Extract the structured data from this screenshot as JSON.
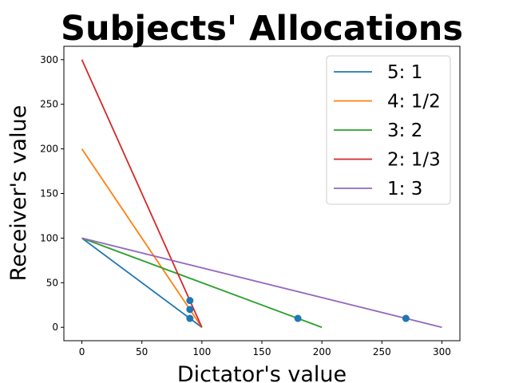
{
  "chart_data": {
    "type": "line",
    "title": "Subjects' Allocations",
    "xlabel": "Dictator's value",
    "ylabel": "Receiver's value",
    "xlim": [
      -15,
      315
    ],
    "ylim": [
      -15,
      315
    ],
    "xticks": [
      0,
      50,
      100,
      150,
      200,
      250,
      300
    ],
    "yticks": [
      0,
      50,
      100,
      150,
      200,
      250,
      300
    ],
    "legend_position": "top-right",
    "series": [
      {
        "name": "5: 1",
        "color": "#1f77b4",
        "x": [
          0,
          100
        ],
        "y": [
          100,
          0
        ]
      },
      {
        "name": "4: 1/2",
        "color": "#ff7f0e",
        "x": [
          0,
          100
        ],
        "y": [
          200,
          0
        ]
      },
      {
        "name": "3: 2",
        "color": "#2ca02c",
        "x": [
          0,
          200
        ],
        "y": [
          100,
          0
        ]
      },
      {
        "name": "2: 1/3",
        "color": "#d62728",
        "x": [
          0,
          100
        ],
        "y": [
          300,
          0
        ]
      },
      {
        "name": "1: 3",
        "color": "#9467bd",
        "x": [
          0,
          300
        ],
        "y": [
          100,
          0
        ]
      }
    ],
    "points": {
      "color": "#1f77b4",
      "x": [
        90,
        90,
        90,
        180,
        270
      ],
      "y": [
        10,
        20,
        30,
        10,
        10
      ]
    }
  }
}
